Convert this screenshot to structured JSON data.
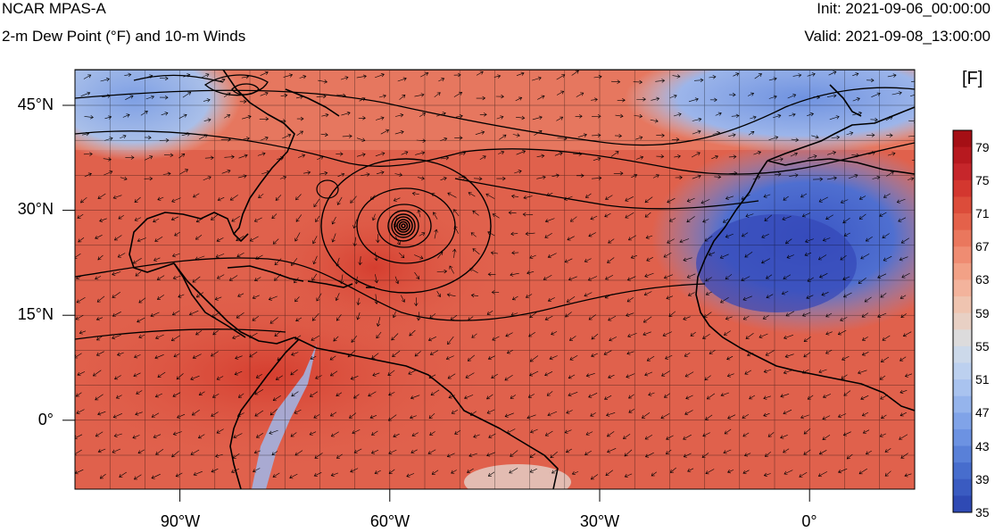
{
  "header": {
    "model": "NCAR MPAS-A",
    "field": "2-m Dew Point (°F) and 10-m Winds",
    "init": "Init: 2021-09-06_00:00:00",
    "valid": "Valid: 2021-09-08_13:00:00"
  },
  "map": {
    "projection": "cylindrical equidistant",
    "lon_range": [
      -105,
      15
    ],
    "lat_range": [
      -10,
      48
    ],
    "lat_ticks": [
      {
        "lat": 45,
        "label": "45°N"
      },
      {
        "lat": 30,
        "label": "30°N"
      },
      {
        "lat": 15,
        "label": "15°N"
      },
      {
        "lat": 0,
        "label": "0°"
      }
    ],
    "lon_ticks": [
      {
        "lon": -90,
        "label": "90°W"
      },
      {
        "lon": -60,
        "label": "60°W"
      },
      {
        "lon": -30,
        "label": "30°W"
      },
      {
        "lon": 0,
        "label": "0°"
      }
    ],
    "grid_spacing_deg": 5,
    "hurricane_center": {
      "lon": -57.5,
      "lat": 28
    },
    "colors": {
      "ocean_moist": "#e0614c",
      "dry_saharan": "#3f5cc8",
      "cool_north": "#8aa7e6",
      "contour": "#000000",
      "coast": "#000000"
    }
  },
  "colorbar": {
    "units": "[F]",
    "min": 35,
    "max": 81,
    "labels": [
      "79",
      "75",
      "71",
      "67",
      "63",
      "59",
      "55",
      "51",
      "47",
      "43",
      "39",
      "35"
    ],
    "colors": [
      "#a50f15",
      "#b7191f",
      "#c6262b",
      "#d3372f",
      "#dc4c3a",
      "#e4614a",
      "#ea775d",
      "#ef8c72",
      "#f2a186",
      "#f3b39c",
      "#efc4b0",
      "#e8d0c4",
      "#dcdbdc",
      "#ccd9ea",
      "#bcd0ef",
      "#a9c3ef",
      "#95b4ec",
      "#80a3e8",
      "#6c92e2",
      "#5980d8",
      "#476dcd",
      "#3a5bc1",
      "#2f4ab4"
    ]
  }
}
